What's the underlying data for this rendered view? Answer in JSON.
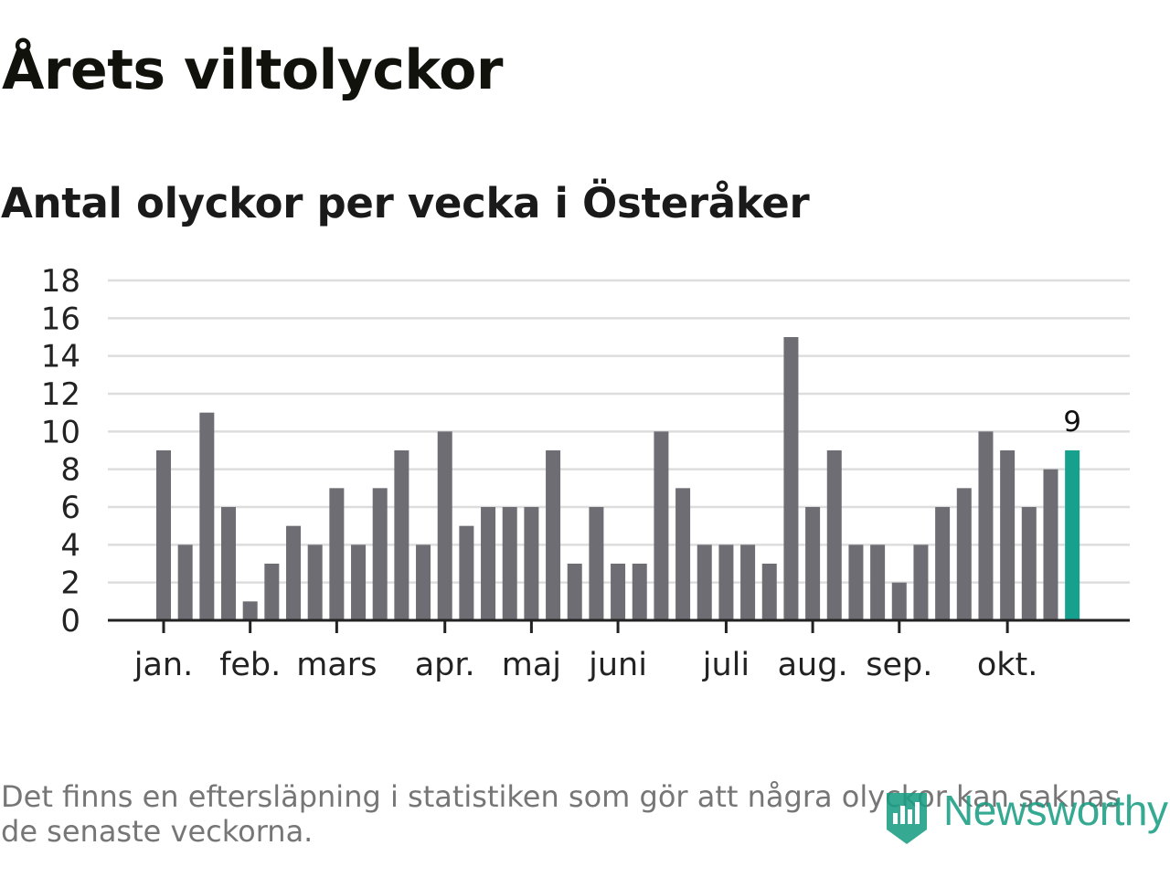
{
  "title": "Årets viltolyckor",
  "subtitle": "Antal olyckor per vecka i Österåker",
  "footnote": "Det finns en eftersläpning i statistiken som gör att några olyckor kan saknas de senaste veckorna.",
  "brand": {
    "name": "Newsworthy",
    "icon": "newsworthy-logo-icon",
    "color": "#1a9e83"
  },
  "colors": {
    "bar": "#6e6d73",
    "highlight": "#16a18e",
    "grid": "#dddddd",
    "axis": "#222222"
  },
  "chart_data": {
    "type": "bar",
    "title": "Antal olyckor per vecka i Österåker",
    "xlabel": "",
    "ylabel": "",
    "ylim": [
      0,
      18
    ],
    "yticks": [
      0,
      2,
      4,
      6,
      8,
      10,
      12,
      14,
      16,
      18
    ],
    "grid": true,
    "values": [
      9,
      4,
      11,
      6,
      1,
      3,
      5,
      4,
      7,
      4,
      7,
      9,
      4,
      10,
      5,
      6,
      6,
      6,
      9,
      3,
      6,
      3,
      3,
      10,
      7,
      4,
      4,
      4,
      3,
      15,
      6,
      9,
      4,
      4,
      2,
      4,
      6,
      7,
      10,
      9,
      6,
      8,
      9
    ],
    "month_labels": [
      {
        "label": "jan.",
        "at_bar": 0
      },
      {
        "label": "feb.",
        "at_bar": 4
      },
      {
        "label": "mars",
        "at_bar": 8
      },
      {
        "label": "apr.",
        "at_bar": 13
      },
      {
        "label": "maj",
        "at_bar": 17
      },
      {
        "label": "juni",
        "at_bar": 21
      },
      {
        "label": "juli",
        "at_bar": 26
      },
      {
        "label": "aug.",
        "at_bar": 30
      },
      {
        "label": "sep.",
        "at_bar": 34
      },
      {
        "label": "okt.",
        "at_bar": 39
      }
    ],
    "highlight_last": true,
    "last_value_label": "9"
  }
}
